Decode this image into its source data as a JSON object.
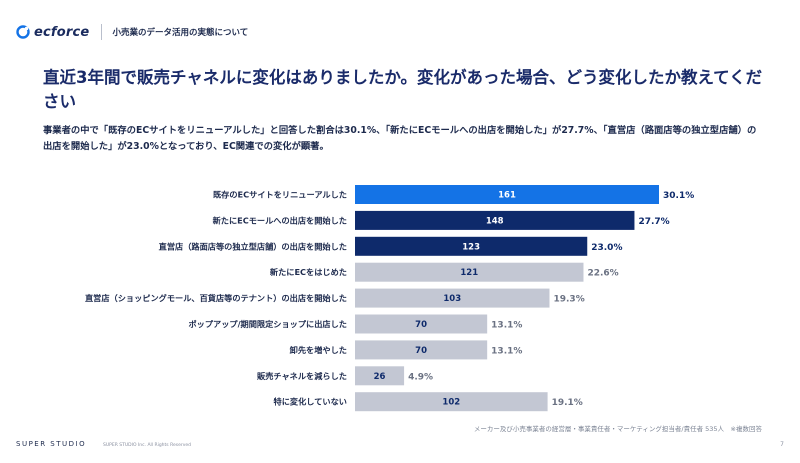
{
  "header": {
    "logo_text": "ecforce",
    "section_label": "小売業のデータ活用の実態について"
  },
  "title": "直近3年間で販売チャネルに変化はありましたか。変化があった場合、どう変化したか教えてください",
  "summary": "事業者の中で「既存のECサイトをリニューアルした」と回答した割合は30.1%、「新たにECモールへの出店を開始した」が27.7%、「直営店（路面店等の独立型店舗）の出店を開始した」が23.0%となっており、EC関連での変化が顕著。",
  "colors": {
    "highlight": "#1473e6",
    "dark": "#0e2a6b",
    "grey": "#c3c7d3",
    "text_dark": "#1d2a4d",
    "text_grey": "#6b7283"
  },
  "chart_data": {
    "type": "bar",
    "orientation": "horizontal",
    "categories": [
      "既存のECサイトをリニューアルした",
      "新たにECモールへの出店を開始した",
      "直営店（路面店等の独立型店舗）の出店を開始した",
      "新たにECをはじめた",
      "直営店（ショッピングモール、百貨店等のテナント）の出店を開始した",
      "ポップアップ/期間限定ショップに出店した",
      "卸先を増やした",
      "販売チャネルを減らした",
      "特に変化していない"
    ],
    "values": [
      161,
      148,
      123,
      121,
      103,
      70,
      70,
      26,
      102
    ],
    "percent_labels": [
      "30.1%",
      "27.7%",
      "23.0%",
      "22.6%",
      "19.3%",
      "13.1%",
      "13.1%",
      "4.9%",
      "19.1%"
    ],
    "highlight": [
      "blue",
      "dark",
      "dark",
      "grey",
      "grey",
      "grey",
      "grey",
      "grey",
      "grey"
    ],
    "xlim": [
      0,
      161
    ],
    "grid": false
  },
  "footnote": "メーカー及び小売事業者の経営層・事業責任者・マーケティング担当者/責任者 535人　※複数回答",
  "footer": {
    "brand": "SUPER STUDIO",
    "copyright": "SUPER STUDIO Inc. All Rights Reserved",
    "page": "7"
  }
}
